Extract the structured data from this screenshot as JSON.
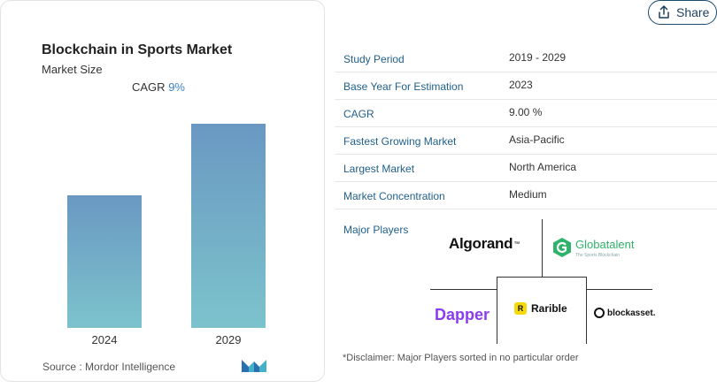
{
  "card": {
    "title": "Blockchain in Sports Market",
    "subtitle": "Market Size",
    "cagr_label": "CAGR",
    "cagr_value": "9%",
    "source": "Source :  Mordor Intelligence"
  },
  "chart_data": {
    "type": "bar",
    "categories": [
      "2024",
      "2029"
    ],
    "values": [
      1.0,
      1.54
    ],
    "title": "",
    "xlabel": "",
    "ylabel": "",
    "ylim": [
      0,
      1.6
    ],
    "grid": false,
    "colors": {
      "bar_top": "#6a98c2",
      "bar_bottom": "#7cc3cc"
    }
  },
  "share": {
    "label": "Share",
    "icon": "share-icon"
  },
  "table": {
    "rows": [
      {
        "key": "Study Period",
        "value": "2019 - 2029"
      },
      {
        "key": "Base Year For Estimation",
        "value": "2023"
      },
      {
        "key": "CAGR",
        "value": "9.00 %"
      },
      {
        "key": "Fastest Growing Market",
        "value": "Asia-Pacific"
      },
      {
        "key": "Largest Market",
        "value": "North America"
      },
      {
        "key": "Market Concentration",
        "value": "Medium"
      }
    ]
  },
  "major_players": {
    "label": "Major Players",
    "algorand": "Algorand",
    "globatalent": "Globatalent",
    "globatalent_tag": "The Sports Blockchain",
    "dapper": "Dapper",
    "rarible": "Rarible",
    "rarible_badge": "R",
    "blockasset": "blockasset."
  },
  "disclaimer": "*Disclaimer: Major Players sorted in no particular order",
  "colors": {
    "accent": "#1f5f8b",
    "cagr": "#3b83c4"
  }
}
